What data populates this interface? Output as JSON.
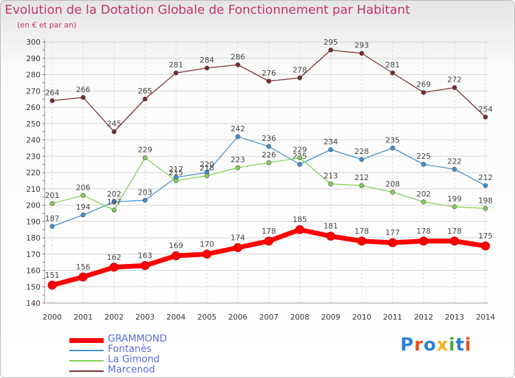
{
  "header": {
    "title": "Evolution de la Dotation Globale de Fonctionnement par Habitant",
    "subtitle": "(en € et par an)"
  },
  "logo": {
    "text": "Proxiti",
    "colors": [
      "#2a7fd4",
      "#e8501c",
      "#2a7fd4",
      "#f2b31b",
      "#4aa845",
      "#2a7fd4",
      "#e8501c"
    ]
  },
  "chart_data": {
    "type": "line",
    "x": [
      2000,
      2001,
      2002,
      2003,
      2004,
      2005,
      2006,
      2007,
      2008,
      2009,
      2010,
      2011,
      2012,
      2013,
      2014
    ],
    "ylim": [
      140,
      300
    ],
    "yticks": [
      140,
      150,
      160,
      170,
      180,
      190,
      200,
      210,
      220,
      230,
      240,
      250,
      260,
      270,
      280,
      290,
      300
    ],
    "grid": true,
    "legend_position": "bottom-left",
    "series": [
      {
        "name": "Marcenod",
        "color": "#7a2a2a",
        "values": [
          264,
          266,
          245,
          265,
          281,
          284,
          286,
          276,
          278,
          295,
          293,
          281,
          269,
          272,
          254
        ]
      },
      {
        "name": "Fontanès",
        "color": "#3f8fd0",
        "values": [
          187,
          194,
          202,
          203,
          217,
          220,
          242,
          236,
          225,
          234,
          228,
          235,
          225,
          222,
          212
        ]
      },
      {
        "name": "La Gimond",
        "color": "#7fcf52",
        "values": [
          201,
          206,
          197,
          229,
          215,
          218,
          223,
          226,
          229,
          213,
          212,
          208,
          202,
          199,
          198
        ]
      },
      {
        "name": "GRAMMOND",
        "color": "#ff0000",
        "values": [
          151,
          156,
          162,
          163,
          169,
          170,
          174,
          178,
          185,
          181,
          178,
          177,
          178,
          178,
          175
        ]
      }
    ],
    "legend_order": [
      "GRAMMOND",
      "Fontanès",
      "La Gimond",
      "Marcenod"
    ]
  }
}
